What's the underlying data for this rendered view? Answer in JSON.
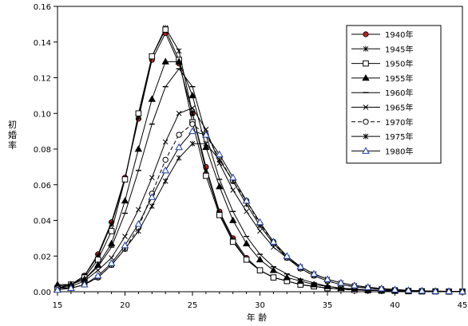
{
  "chart_data": {
    "type": "line",
    "title": "",
    "xlabel": "年 齢",
    "ylabel": "初婚率",
    "xlim": [
      15,
      45
    ],
    "ylim": [
      0,
      0.16
    ],
    "x_ticks": [
      15,
      20,
      25,
      30,
      35,
      40,
      45
    ],
    "x_tick_labels": [
      "15",
      "20",
      "25",
      "30",
      "35",
      "40",
      "45"
    ],
    "y_ticks": [
      0,
      0.02,
      0.04,
      0.06,
      0.08,
      0.1,
      0.12,
      0.14,
      0.16
    ],
    "y_tick_labels": [
      "0.00",
      "0.02",
      "0.04",
      "0.06",
      "0.08",
      "0.10",
      "0.12",
      "0.14",
      "0.16"
    ],
    "grid": false,
    "legend_position": "top-right",
    "x": [
      15,
      16,
      17,
      18,
      19,
      20,
      21,
      22,
      23,
      24,
      25,
      26,
      27,
      28,
      29,
      30,
      31,
      32,
      33,
      34,
      35,
      36,
      37,
      38,
      39,
      40,
      41,
      42,
      43,
      44,
      45
    ],
    "series": [
      {
        "name": "1940年",
        "marker": "filled-circle",
        "dash": "",
        "color": "#000000",
        "marker_color": "#b22222",
        "values": [
          0.002,
          0.004,
          0.009,
          0.021,
          0.039,
          0.064,
          0.097,
          0.13,
          0.145,
          0.128,
          0.1,
          0.07,
          0.045,
          0.03,
          0.019,
          0.012,
          0.008,
          0.006,
          0.004,
          0.003,
          0.002,
          0.0015,
          0.001,
          0.0008,
          0.0006,
          0.0005,
          0.0003,
          0.0002,
          0.0002,
          0.0001,
          0.0001
        ]
      },
      {
        "name": "1945年",
        "marker": "star",
        "dash": "",
        "color": "#000000",
        "marker_color": "#000000",
        "values": [
          0.002,
          0.004,
          0.009,
          0.02,
          0.038,
          0.063,
          0.098,
          0.132,
          0.148,
          0.135,
          0.1,
          0.068,
          0.044,
          0.029,
          0.018,
          0.012,
          0.008,
          0.006,
          0.004,
          0.003,
          0.002,
          0.0015,
          0.001,
          0.0008,
          0.0006,
          0.0005,
          0.0003,
          0.0002,
          0.0002,
          0.0001,
          0.0001
        ]
      },
      {
        "name": "1950年",
        "marker": "open-square",
        "dash": "",
        "color": "#000000",
        "marker_color": "#000000",
        "values": [
          0.002,
          0.004,
          0.008,
          0.018,
          0.034,
          0.063,
          0.1,
          0.132,
          0.147,
          0.13,
          0.095,
          0.065,
          0.043,
          0.028,
          0.018,
          0.012,
          0.008,
          0.006,
          0.004,
          0.003,
          0.002,
          0.0015,
          0.001,
          0.0008,
          0.0006,
          0.0005,
          0.0003,
          0.0002,
          0.0002,
          0.0001,
          0.0001
        ]
      },
      {
        "name": "1955年",
        "marker": "filled-triangle",
        "dash": "",
        "color": "#000000",
        "marker_color": "#000000",
        "values": [
          0.004,
          0.004,
          0.007,
          0.015,
          0.027,
          0.051,
          0.08,
          0.108,
          0.129,
          0.129,
          0.11,
          0.081,
          0.059,
          0.04,
          0.027,
          0.018,
          0.012,
          0.008,
          0.006,
          0.004,
          0.003,
          0.002,
          0.0015,
          0.001,
          0.0008,
          0.0006,
          0.0004,
          0.0003,
          0.0002,
          0.0001,
          0.0001
        ]
      },
      {
        "name": "1960年",
        "marker": "dash",
        "dash": "",
        "color": "#000000",
        "marker_color": "#000000",
        "values": [
          0.003,
          0.004,
          0.007,
          0.014,
          0.025,
          0.044,
          0.068,
          0.094,
          0.115,
          0.125,
          0.115,
          0.088,
          0.063,
          0.045,
          0.031,
          0.021,
          0.014,
          0.01,
          0.007,
          0.005,
          0.003,
          0.002,
          0.0015,
          0.001,
          0.0008,
          0.0006,
          0.0004,
          0.0003,
          0.0002,
          0.0001,
          0.0001
        ]
      },
      {
        "name": "1965年",
        "marker": "x",
        "dash": "",
        "color": "#000000",
        "marker_color": "#000000",
        "values": [
          0.002,
          0.003,
          0.006,
          0.012,
          0.019,
          0.031,
          0.046,
          0.064,
          0.084,
          0.1,
          0.103,
          0.091,
          0.072,
          0.057,
          0.045,
          0.034,
          0.025,
          0.019,
          0.014,
          0.01,
          0.007,
          0.005,
          0.0035,
          0.0025,
          0.0018,
          0.0012,
          0.0008,
          0.0005,
          0.0003,
          0.0002,
          0.0001
        ]
      },
      {
        "name": "1970年",
        "marker": "open-circle",
        "dash": "5,3",
        "color": "#000000",
        "marker_color": "#000000",
        "values": [
          0.002,
          0.002,
          0.004,
          0.008,
          0.015,
          0.024,
          0.036,
          0.055,
          0.074,
          0.088,
          0.094,
          0.088,
          0.075,
          0.062,
          0.051,
          0.038,
          0.028,
          0.019,
          0.013,
          0.009,
          0.006,
          0.004,
          0.0028,
          0.002,
          0.0014,
          0.001,
          0.0007,
          0.0005,
          0.0003,
          0.0002,
          0.0001
        ]
      },
      {
        "name": "1975年",
        "marker": "star",
        "dash": "",
        "color": "#000000",
        "marker_color": "#000000",
        "values": [
          0.002,
          0.002,
          0.004,
          0.008,
          0.015,
          0.024,
          0.034,
          0.048,
          0.062,
          0.075,
          0.083,
          0.083,
          0.074,
          0.062,
          0.049,
          0.037,
          0.027,
          0.019,
          0.013,
          0.009,
          0.006,
          0.004,
          0.0028,
          0.002,
          0.0014,
          0.001,
          0.0007,
          0.0005,
          0.0003,
          0.0002,
          0.0001
        ]
      },
      {
        "name": "1980年",
        "marker": "open-triangle",
        "dash": "",
        "color": "#000000",
        "marker_color": "#000000",
        "values": [
          0.001,
          0.002,
          0.004,
          0.009,
          0.016,
          0.026,
          0.038,
          0.053,
          0.068,
          0.081,
          0.09,
          0.088,
          0.077,
          0.064,
          0.051,
          0.039,
          0.028,
          0.02,
          0.014,
          0.01,
          0.007,
          0.005,
          0.0035,
          0.0025,
          0.0018,
          0.0012,
          0.0008,
          0.0005,
          0.0003,
          0.0002,
          0.0001
        ]
      }
    ]
  }
}
